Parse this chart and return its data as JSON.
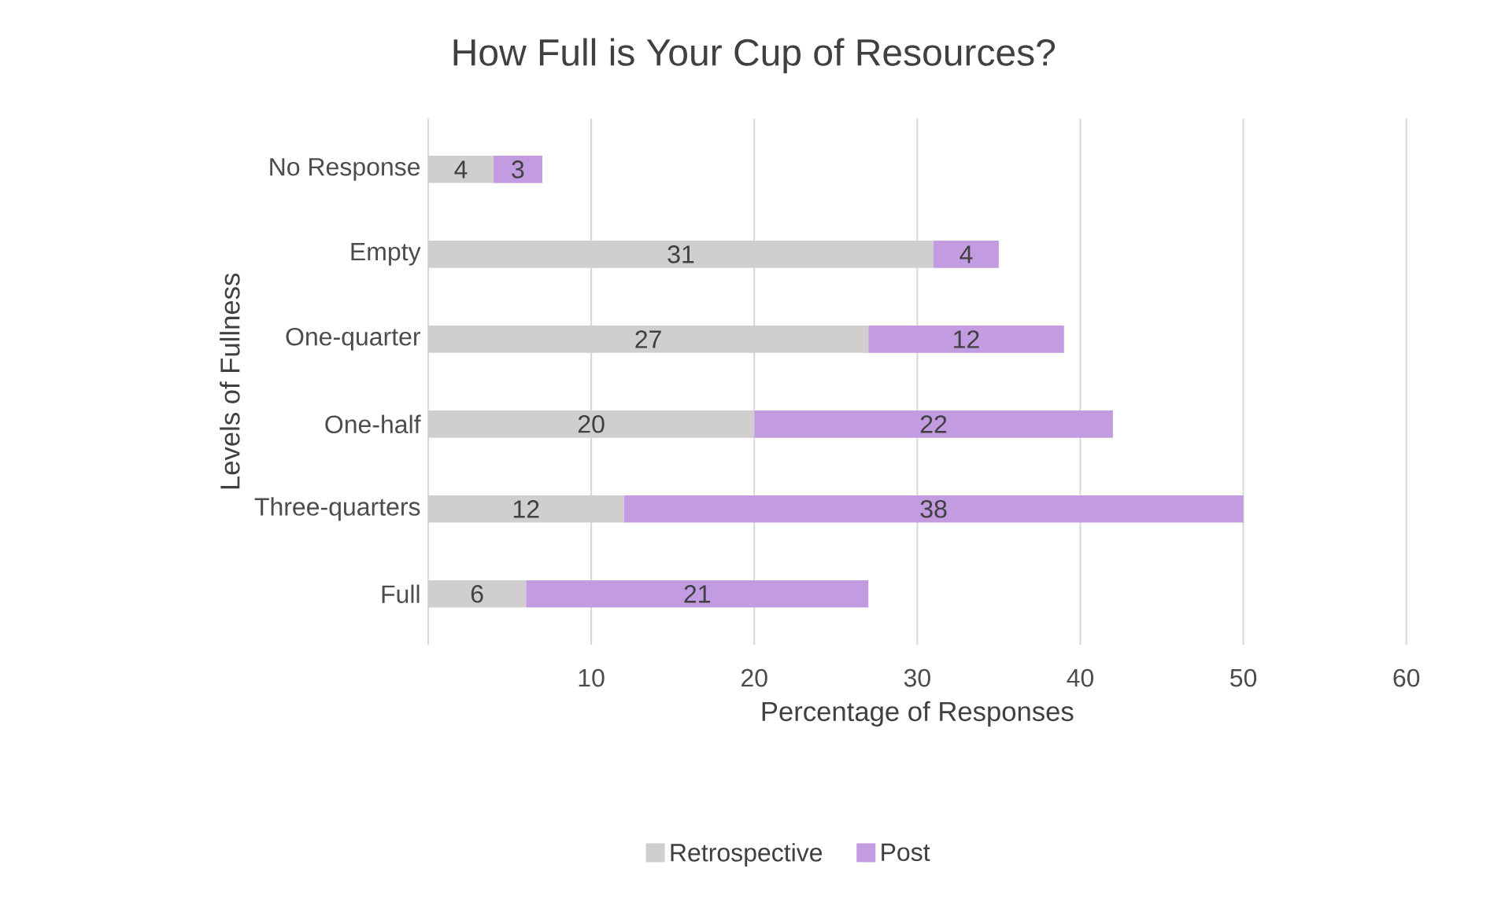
{
  "chart_data": {
    "type": "bar",
    "orientation": "horizontal",
    "stacked": true,
    "title": "How Full is Your Cup of Resources?",
    "xlabel": "Percentage of Responses",
    "ylabel": "Levels of Fullness",
    "categories": [
      "No Response",
      "Empty",
      "One-quarter",
      "One-half",
      "Three-quarters",
      "Full"
    ],
    "series": [
      {
        "name": "Retrospective",
        "color": "#d0cece",
        "values": [
          4,
          31,
          27,
          20,
          12,
          6
        ]
      },
      {
        "name": "Post",
        "color": "#c39be0",
        "values": [
          3,
          4,
          12,
          22,
          38,
          21
        ]
      }
    ],
    "xlim": [
      0,
      60
    ],
    "xticks": [
      {
        "value": 0,
        "label": null
      },
      10,
      20,
      30,
      40,
      50,
      60
    ],
    "grid": "x",
    "legend": "bottom",
    "data_labels": true
  }
}
